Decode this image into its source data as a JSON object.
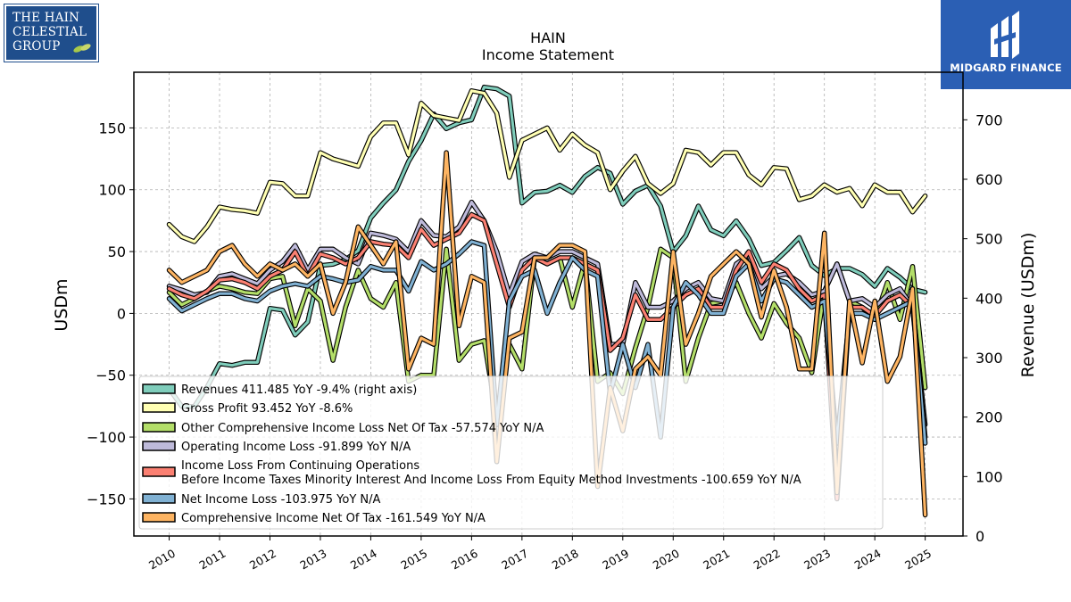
{
  "logos": {
    "left_text": [
      "THE HAIN",
      "CELESTIAL",
      "GROUP"
    ],
    "right_text": "MIDGARD FINANCE"
  },
  "chart_data": {
    "type": "line",
    "title": "HAIN",
    "subtitle": "Income Statement",
    "ylabel": "USDm",
    "ylabel_right": "Revenue (USDm)",
    "ylim": [
      -180,
      195
    ],
    "ylim_right": [
      0,
      780
    ],
    "yticks": [
      -150,
      -100,
      -50,
      0,
      50,
      100,
      150
    ],
    "yticks_right": [
      0,
      100,
      200,
      300,
      400,
      500,
      600,
      700
    ],
    "xlim": [
      2009.3,
      2025.75
    ],
    "xticks": [
      2010,
      2011,
      2012,
      2013,
      2014,
      2015,
      2016,
      2017,
      2018,
      2019,
      2020,
      2021,
      2022,
      2023,
      2024,
      2025
    ],
    "grid": true,
    "legend_position": "lower-left",
    "x": [
      2010.0,
      2010.25,
      2010.5,
      2010.75,
      2011.0,
      2011.25,
      2011.5,
      2011.75,
      2012.0,
      2012.25,
      2012.5,
      2012.75,
      2013.0,
      2013.25,
      2013.5,
      2013.75,
      2014.0,
      2014.25,
      2014.5,
      2014.75,
      2015.0,
      2015.25,
      2015.5,
      2015.75,
      2016.0,
      2016.25,
      2016.5,
      2016.75,
      2017.0,
      2017.25,
      2017.5,
      2017.75,
      2018.0,
      2018.25,
      2018.5,
      2018.75,
      2019.0,
      2019.25,
      2019.5,
      2019.75,
      2020.0,
      2020.25,
      2020.5,
      2020.75,
      2021.0,
      2021.25,
      2021.5,
      2021.75,
      2022.0,
      2022.25,
      2022.5,
      2022.75,
      2023.0,
      2023.25,
      2023.5,
      2023.75,
      2024.0,
      2024.25,
      2024.5,
      2024.75,
      2025.0
    ],
    "series": [
      {
        "name": "Revenues  411.485 YoY -9.4% (right axis)",
        "axis": "right",
        "color": "#7fcdbb",
        "values": [
          248,
          218,
          218,
          250,
          290,
          287,
          292,
          292,
          383,
          380,
          338,
          360,
          455,
          457,
          465,
          480,
          535,
          560,
          582,
          630,
          665,
          710,
          685,
          695,
          700,
          755,
          752,
          740,
          560,
          578,
          580,
          590,
          578,
          605,
          620,
          610,
          558,
          580,
          590,
          555,
          478,
          505,
          555,
          515,
          505,
          530,
          500,
          455,
          460,
          480,
          502,
          455,
          438,
          450,
          450,
          440,
          420,
          450,
          435,
          415,
          410
        ]
      },
      {
        "name": "Gross Profit  93.452 YoY -8.6%",
        "axis": "left",
        "color": "#ffffb3",
        "values": [
          72,
          62,
          58,
          70,
          86,
          84,
          83,
          81,
          106,
          105,
          95,
          95,
          130,
          125,
          122,
          119,
          143,
          154,
          154,
          128,
          170,
          160,
          158,
          156,
          180,
          178,
          162,
          110,
          140,
          145,
          150,
          132,
          145,
          136,
          130,
          100,
          115,
          127,
          105,
          97,
          105,
          132,
          130,
          120,
          130,
          130,
          112,
          104,
          118,
          117,
          92,
          95,
          104,
          98,
          101,
          87,
          104,
          98,
          98,
          82,
          95
        ]
      },
      {
        "name": "Other Comprehensive Income Loss Net Of Tax  -57.574 YoY N/A",
        "axis": "left",
        "color": "#b3de69",
        "values": [
          17,
          7,
          12,
          18,
          22,
          20,
          17,
          16,
          28,
          30,
          -10,
          20,
          10,
          -38,
          5,
          35,
          12,
          5,
          25,
          -55,
          -50,
          -50,
          52,
          -38,
          -25,
          -22,
          -85,
          -25,
          -45,
          45,
          40,
          45,
          5,
          42,
          -55,
          -48,
          -65,
          -28,
          5,
          52,
          45,
          -55,
          -20,
          8,
          10,
          25,
          0,
          -20,
          8,
          -8,
          -20,
          -48,
          18,
          40,
          10,
          5,
          -5,
          25,
          -5,
          38,
          -60
        ]
      },
      {
        "name": "Operating Income Loss  -91.899 YoY N/A",
        "axis": "left",
        "color": "#bebada",
        "values": [
          22,
          19,
          15,
          17,
          30,
          32,
          28,
          24,
          35,
          42,
          55,
          35,
          52,
          52,
          45,
          40,
          65,
          63,
          60,
          50,
          75,
          63,
          62,
          70,
          90,
          75,
          50,
          15,
          42,
          48,
          45,
          50,
          50,
          45,
          40,
          -25,
          -25,
          25,
          5,
          5,
          10,
          20,
          25,
          12,
          10,
          40,
          47,
          20,
          30,
          32,
          25,
          15,
          18,
          40,
          10,
          12,
          5,
          15,
          20,
          5,
          -90
        ]
      },
      {
        "name": "Income Loss From Continuing Operations\nBefore Income Taxes Minority Interest And Income Loss From Equity Method Investments  -100.659 YoY N/A",
        "axis": "left",
        "color": "#fb8072",
        "values": [
          20,
          15,
          12,
          18,
          27,
          28,
          25,
          20,
          30,
          35,
          50,
          30,
          48,
          45,
          40,
          45,
          58,
          56,
          55,
          45,
          68,
          55,
          60,
          65,
          80,
          75,
          40,
          5,
          35,
          45,
          40,
          45,
          45,
          40,
          35,
          -30,
          -20,
          15,
          -5,
          -5,
          5,
          15,
          20,
          5,
          5,
          35,
          50,
          25,
          40,
          35,
          20,
          10,
          15,
          -150,
          5,
          5,
          -2,
          10,
          15,
          5,
          -100
        ]
      },
      {
        "name": "Net Income Loss  -103.975 YoY N/A",
        "axis": "left",
        "color": "#80b1d3",
        "values": [
          12,
          2,
          7,
          12,
          16,
          16,
          12,
          10,
          18,
          22,
          24,
          22,
          30,
          28,
          25,
          27,
          38,
          35,
          35,
          18,
          42,
          35,
          40,
          48,
          58,
          55,
          -90,
          10,
          30,
          35,
          0,
          25,
          45,
          35,
          30,
          -65,
          -25,
          -60,
          -25,
          -100,
          5,
          25,
          15,
          0,
          0,
          30,
          40,
          10,
          28,
          25,
          15,
          5,
          10,
          -105,
          0,
          0,
          -5,
          0,
          5,
          10,
          -105
        ]
      },
      {
        "name": "Comprehensive Income Net Of Tax  -161.549 YoY N/A",
        "axis": "left",
        "color": "#fdb462",
        "values": [
          35,
          25,
          30,
          35,
          50,
          55,
          40,
          30,
          40,
          35,
          40,
          30,
          40,
          0,
          25,
          70,
          55,
          40,
          58,
          -45,
          -20,
          -25,
          130,
          -10,
          30,
          25,
          -120,
          -20,
          -15,
          45,
          45,
          55,
          55,
          50,
          -140,
          -60,
          -95,
          -45,
          -35,
          -50,
          50,
          -25,
          0,
          30,
          40,
          50,
          40,
          -3,
          35,
          5,
          -45,
          -45,
          65,
          -145,
          10,
          -40,
          10,
          -55,
          -35,
          20,
          -163
        ]
      }
    ]
  }
}
